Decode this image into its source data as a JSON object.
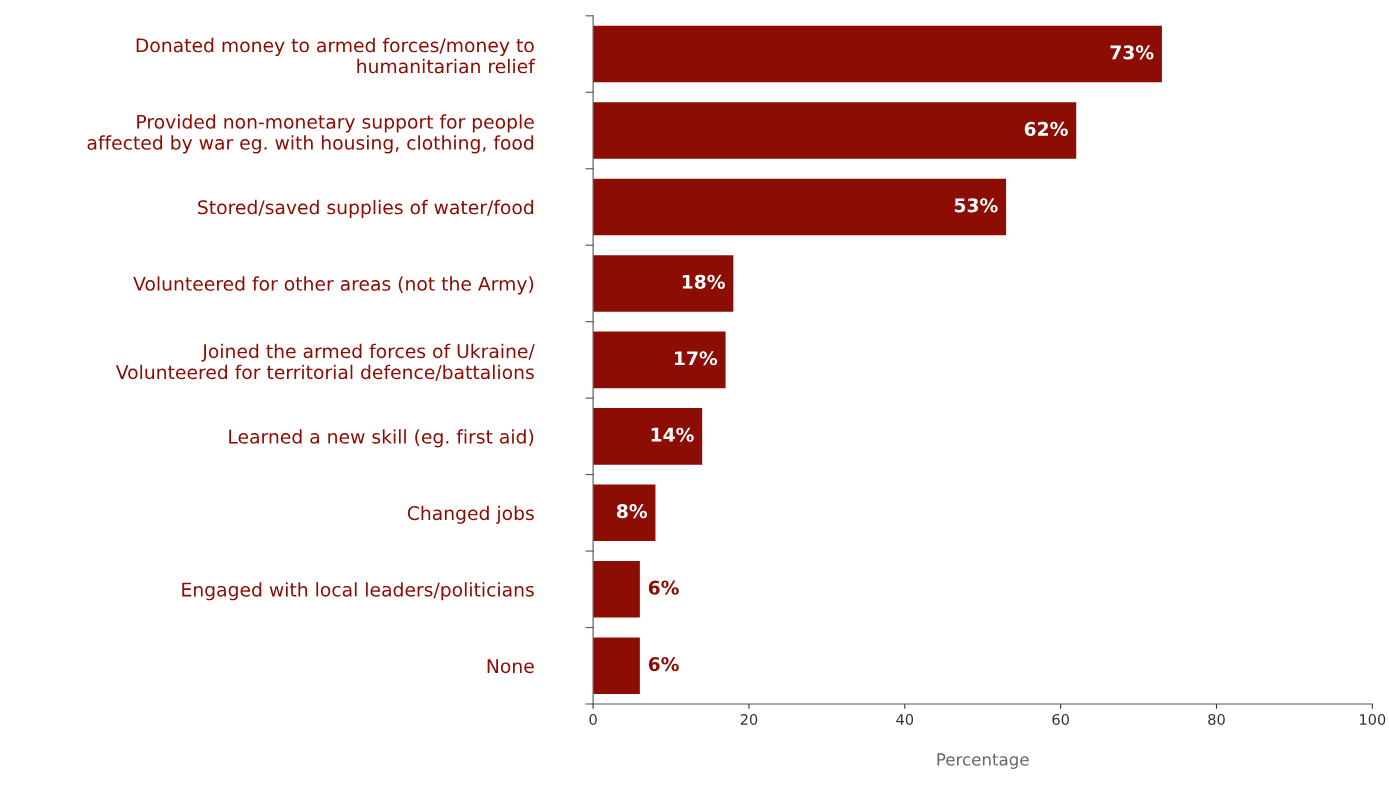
{
  "chart_data": {
    "type": "bar",
    "orientation": "horizontal",
    "xlabel": "Percentage",
    "categories": [
      "Donated money to armed forces/money to\nhumanitarian relief",
      "Provided non-monetary support for people\naffected by war eg. with housing, clothing, food",
      "Stored/saved supplies of water/food",
      "Volunteered for other areas (not the Army)",
      "Joined the armed forces of Ukraine/\nVolunteered for territorial defence/battalions",
      "Learned a new skill (eg. first aid)",
      "Changed jobs",
      "Engaged with local leaders/politicians",
      "None"
    ],
    "values": [
      73,
      62,
      53,
      18,
      17,
      14,
      8,
      6,
      6
    ],
    "value_labels": [
      "73%",
      "62%",
      "53%",
      "18%",
      "17%",
      "14%",
      "8%",
      "6%",
      "6%"
    ],
    "color": "#8b0d04",
    "xlim": [
      0,
      100
    ],
    "xticks": [
      0,
      20,
      40,
      60,
      80,
      100
    ],
    "grid": false,
    "legend": false
  }
}
